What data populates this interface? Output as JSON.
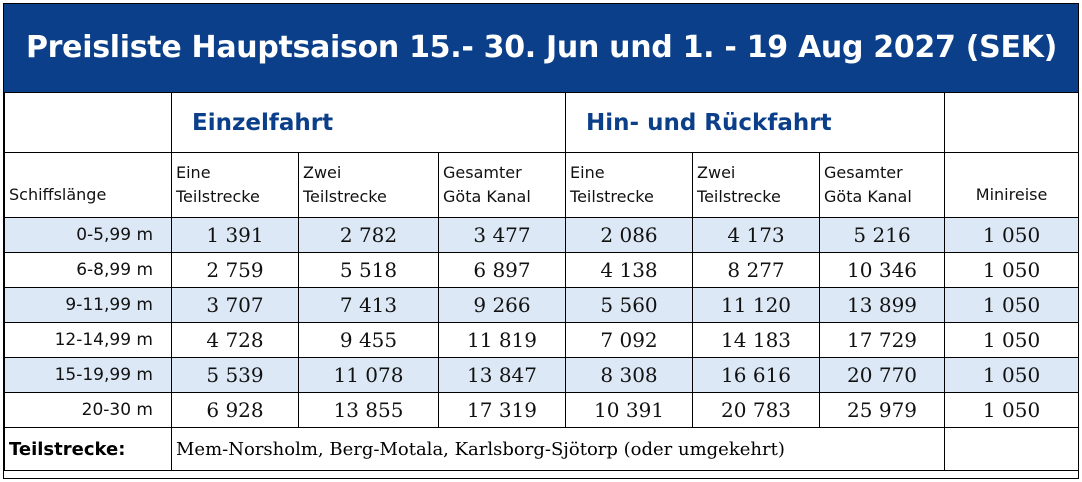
{
  "title": "Preisliste Hauptsaison 15.- 30. Jun und 1. - 19  Aug 2027 (SEK)",
  "groups": {
    "single": "Einzelfahrt",
    "return": "Hin- und Rückfahrt"
  },
  "columns": {
    "length": "Schiffslänge",
    "single_one": [
      "Eine",
      "Teilstrecke"
    ],
    "single_two": [
      "Zwei",
      "Teilstrecke"
    ],
    "single_full": [
      "Gesamter",
      "Göta Kanal"
    ],
    "return_one": [
      "Eine",
      "Teilstrecke"
    ],
    "return_two": [
      "Zwei",
      "Teilstrecke"
    ],
    "return_full": [
      "Gesamter",
      "Göta Kanal"
    ],
    "minireise": "Minireise"
  },
  "rows": [
    {
      "length": "0-5,99 m",
      "values": [
        "1 391",
        "2 782",
        "3 477",
        "2 086",
        "4 173",
        "5 216",
        "1 050"
      ]
    },
    {
      "length": "6-8,99 m",
      "values": [
        "2 759",
        "5 518",
        "6 897",
        "4 138",
        "8 277",
        "10 346",
        "1 050"
      ]
    },
    {
      "length": "9-11,99 m",
      "values": [
        "3 707",
        "7 413",
        "9 266",
        "5 560",
        "11 120",
        "13 899",
        "1 050"
      ]
    },
    {
      "length": "12-14,99 m",
      "values": [
        "4 728",
        "9 455",
        "11 819",
        "7 092",
        "14 183",
        "17 729",
        "1 050"
      ]
    },
    {
      "length": "15-19,99 m",
      "values": [
        "5 539",
        "11 078",
        "13 847",
        "8 308",
        "16 616",
        "20 770",
        "1 050"
      ]
    },
    {
      "length": "20-30 m",
      "values": [
        "6 928",
        "13 855",
        "17 319",
        "10 391",
        "20 783",
        "25 979",
        "1 050"
      ]
    }
  ],
  "footer": {
    "label": "Teilstrecke:",
    "text": "Mem-Norsholm, Berg-Motala, Karlsborg-Sjötorp (oder umgekehrt)"
  },
  "colors": {
    "header_bg": "#0b3f8a",
    "group_text": "#0b3f8a",
    "row_shade": "#dce8f5"
  }
}
